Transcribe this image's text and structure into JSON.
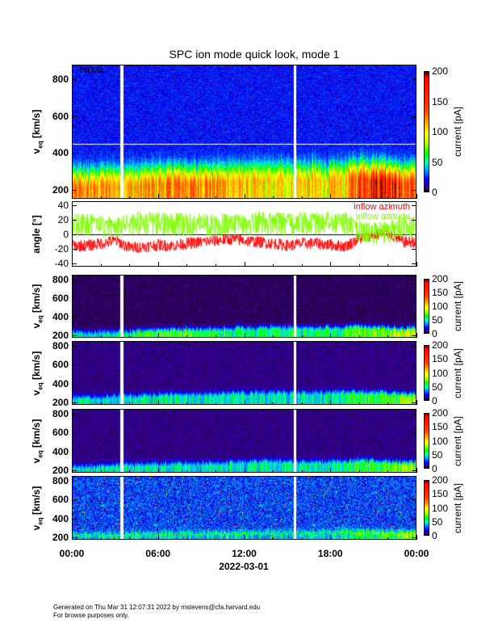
{
  "title": "SPC ion mode quick look, mode 1",
  "footer": {
    "generated": "Generated on Thu Mar 31 12:07:31 2022 by mstevens@cfa.harvard.edu",
    "note": "For browse purposes only."
  },
  "chart_data": [
    {
      "type": "heatmap",
      "name": "total",
      "annotation": "TOTAL",
      "ylabel_main": "v",
      "ylabel_sub": "eq",
      "ylabel_unit": "[km/s]",
      "ylim": [
        150,
        880
      ],
      "yticks": [
        "200",
        "400",
        "600",
        "800"
      ],
      "ytick_values": [
        200,
        400,
        600,
        800
      ],
      "colorbar": {
        "label": "current [pA]",
        "range": [
          0,
          200
        ],
        "ticks": [
          "0",
          "50",
          "100",
          "150",
          "200"
        ],
        "tick_values": [
          0,
          50,
          100,
          150,
          200
        ]
      },
      "background_level_pA": 8,
      "peak_speed_kms_hourly": [
        200,
        200,
        205,
        210,
        215,
        215,
        220,
        220,
        215,
        215,
        220,
        225,
        230,
        235,
        240,
        240,
        240,
        235,
        235,
        240,
        245,
        235,
        230,
        220
      ],
      "peak_current_pA_hourly": [
        95,
        95,
        90,
        85,
        85,
        90,
        95,
        100,
        105,
        105,
        100,
        80,
        75,
        70,
        65,
        70,
        75,
        70,
        70,
        75,
        140,
        170,
        180,
        120
      ],
      "data_gaps_hours": [
        3.4,
        15.45
      ],
      "reference_line_kms": 455
    },
    {
      "type": "line",
      "name": "angles",
      "ylabel": "angle [°]",
      "ylim": [
        -45,
        45
      ],
      "yticks": [
        "-40",
        "-20",
        "0",
        "20",
        "40"
      ],
      "ytick_values": [
        -40,
        -20,
        0,
        20,
        40
      ],
      "series": [
        {
          "name": "inflow azimuth",
          "color": "#ff0000",
          "values_hourly": [
            -15,
            -15,
            -12,
            -8,
            -18,
            -16,
            -14,
            -15,
            -12,
            -10,
            -8,
            -6,
            -8,
            -10,
            -12,
            -15,
            -12,
            -12,
            -14,
            -16,
            -5,
            0,
            2,
            -10
          ]
        },
        {
          "name": "inflow attitude",
          "color": "#80ff00",
          "values_hourly": [
            15,
            15,
            12,
            10,
            18,
            18,
            18,
            17,
            16,
            16,
            15,
            15,
            16,
            18,
            18,
            15,
            18,
            18,
            18,
            18,
            8,
            3,
            5,
            12
          ]
        }
      ]
    },
    {
      "type": "heatmap",
      "name": "channel-1",
      "ylabel_main": "v",
      "ylabel_sub": "eq",
      "ylabel_unit": "[km/s]",
      "ylim": [
        175,
        850
      ],
      "yticks": [
        "200",
        "400",
        "600",
        "800"
      ],
      "ytick_values": [
        200,
        400,
        600,
        800
      ],
      "colorbar": {
        "label": "current [pA]",
        "range": [
          0,
          200
        ],
        "ticks": [
          "0",
          "50",
          "100",
          "150",
          "200"
        ],
        "tick_values": [
          0,
          50,
          100,
          150,
          200
        ]
      },
      "background_level_pA": 2,
      "peak_speed_kms_hourly": [
        210,
        210,
        215,
        215,
        220,
        225,
        230,
        235,
        240,
        240,
        245,
        250,
        255,
        260,
        265,
        260,
        255,
        255,
        260,
        265,
        265,
        260,
        250,
        240
      ],
      "peak_current_pA_hourly": [
        25,
        25,
        25,
        25,
        30,
        35,
        40,
        40,
        40,
        35,
        35,
        30,
        30,
        30,
        30,
        30,
        30,
        30,
        30,
        35,
        45,
        45,
        50,
        60
      ],
      "data_gaps_hours": [
        3.4,
        15.45
      ]
    },
    {
      "type": "heatmap",
      "name": "channel-2",
      "ylabel_main": "v",
      "ylabel_sub": "eq",
      "ylabel_unit": "[km/s]",
      "ylim": [
        175,
        850
      ],
      "yticks": [
        "200",
        "400",
        "600",
        "800"
      ],
      "ytick_values": [
        200,
        400,
        600,
        800
      ],
      "colorbar": {
        "label": "current [pA]",
        "range": [
          0,
          200
        ],
        "ticks": [
          "0",
          "50",
          "100",
          "150",
          "200"
        ],
        "tick_values": [
          0,
          50,
          100,
          150,
          200
        ]
      },
      "background_level_pA": 3,
      "peak_speed_kms_hourly": [
        230,
        230,
        235,
        240,
        245,
        250,
        255,
        260,
        260,
        260,
        265,
        270,
        275,
        280,
        285,
        280,
        275,
        275,
        280,
        285,
        285,
        280,
        270,
        260
      ],
      "peak_current_pA_hourly": [
        25,
        25,
        25,
        25,
        25,
        25,
        25,
        25,
        25,
        25,
        25,
        25,
        25,
        25,
        25,
        25,
        25,
        25,
        25,
        30,
        35,
        35,
        40,
        50
      ],
      "data_gaps_hours": [
        3.4,
        15.45
      ]
    },
    {
      "type": "heatmap",
      "name": "channel-3",
      "ylabel_main": "v",
      "ylabel_sub": "eq",
      "ylabel_unit": "[km/s]",
      "ylim": [
        175,
        850
      ],
      "yticks": [
        "200",
        "400",
        "600",
        "800"
      ],
      "ytick_values": [
        200,
        400,
        600,
        800
      ],
      "colorbar": {
        "label": "current [pA]",
        "range": [
          0,
          200
        ],
        "ticks": [
          "0",
          "50",
          "100",
          "150",
          "200"
        ],
        "tick_values": [
          0,
          50,
          100,
          150,
          200
        ]
      },
      "background_level_pA": 3,
      "peak_speed_kms_hourly": [
        220,
        220,
        225,
        230,
        235,
        240,
        245,
        250,
        250,
        250,
        255,
        260,
        265,
        270,
        275,
        270,
        265,
        265,
        270,
        275,
        275,
        270,
        260,
        250
      ],
      "peak_current_pA_hourly": [
        25,
        25,
        25,
        25,
        25,
        25,
        25,
        25,
        25,
        25,
        25,
        25,
        25,
        25,
        25,
        25,
        25,
        25,
        25,
        30,
        35,
        35,
        40,
        50
      ],
      "data_gaps_hours": [
        3.4,
        15.45
      ]
    },
    {
      "type": "heatmap",
      "name": "channel-4",
      "ylabel_main": "v",
      "ylabel_sub": "eq",
      "ylabel_unit": "[km/s]",
      "ylim": [
        175,
        850
      ],
      "yticks": [
        "200",
        "400",
        "600",
        "800"
      ],
      "ytick_values": [
        200,
        400,
        600,
        800
      ],
      "colorbar": {
        "label": "current [pA]",
        "range": [
          0,
          200
        ],
        "ticks": [
          "0",
          "50",
          "100",
          "150",
          "200"
        ],
        "tick_values": [
          0,
          50,
          100,
          150,
          200
        ]
      },
      "background_level_pA": 6,
      "peak_speed_kms_hourly": [
        210,
        210,
        215,
        215,
        220,
        225,
        225,
        225,
        225,
        225,
        230,
        230,
        235,
        235,
        240,
        240,
        240,
        240,
        240,
        245,
        245,
        240,
        235,
        230
      ],
      "peak_current_pA_hourly": [
        20,
        20,
        20,
        20,
        20,
        20,
        20,
        20,
        20,
        20,
        20,
        20,
        20,
        20,
        20,
        20,
        20,
        20,
        20,
        25,
        30,
        30,
        35,
        45
      ],
      "data_gaps_hours": [
        3.4,
        15.45
      ]
    }
  ],
  "xaxis": {
    "range_hours": [
      0,
      24
    ],
    "ticks": [
      "00:00",
      "06:00",
      "12:00",
      "18:00",
      "00:00"
    ],
    "tick_values": [
      0,
      6,
      12,
      18,
      24
    ],
    "date_label": "2022-03-01"
  }
}
